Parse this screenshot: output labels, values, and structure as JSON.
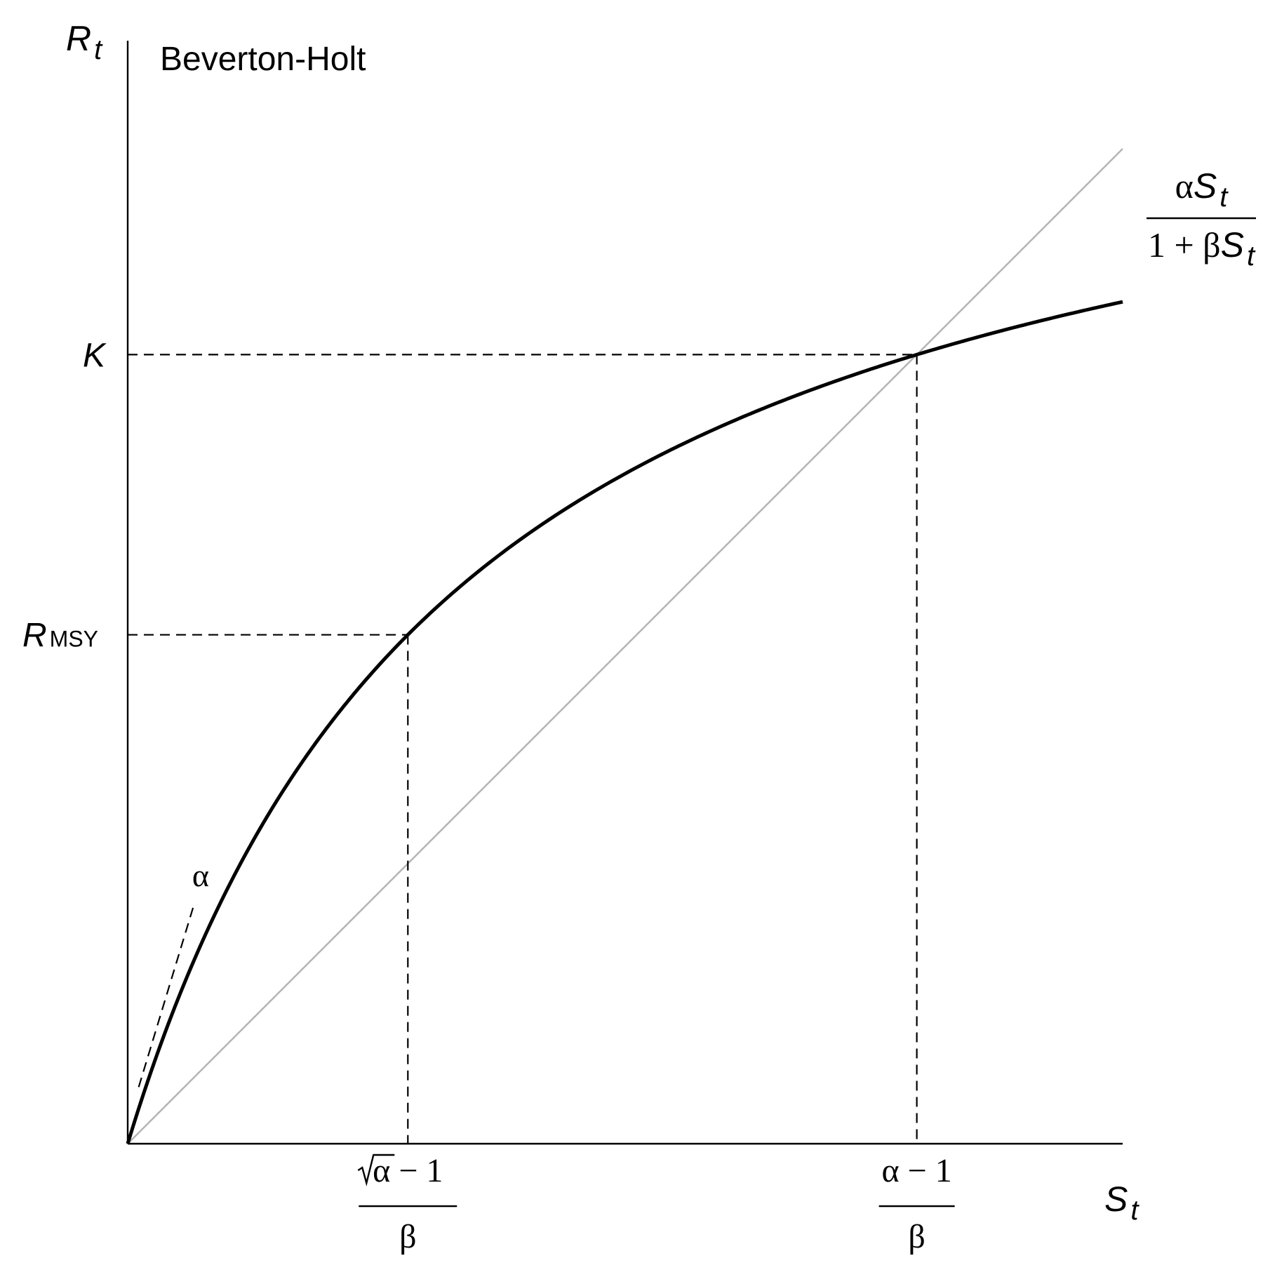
{
  "title": "Beverton-Holt",
  "y_axis": {
    "symbol": "R",
    "subscript": "t"
  },
  "x_axis": {
    "symbol": "S",
    "subscript": "t"
  },
  "y_marks": {
    "K": "K",
    "rmsy": {
      "symbol": "R",
      "subscript": "MSY"
    }
  },
  "x_marks": {
    "smsy": {
      "num_radicand": "α",
      "num_rest": " − 1",
      "den": "β"
    },
    "seq": {
      "num": "α − 1",
      "den": "β"
    }
  },
  "slope_label": "α",
  "curve_formula": {
    "num_coef": "α",
    "num_sym": "S",
    "num_sub": "t",
    "den_pre": "1 + β",
    "den_sym": "S",
    "den_sub": "t"
  },
  "model": {
    "alpha": 3.3,
    "beta": 1,
    "x_max": 2.9
  },
  "colors": {
    "curve": "#000000",
    "replacement": "#b3b3b3",
    "guide": "#000000"
  }
}
